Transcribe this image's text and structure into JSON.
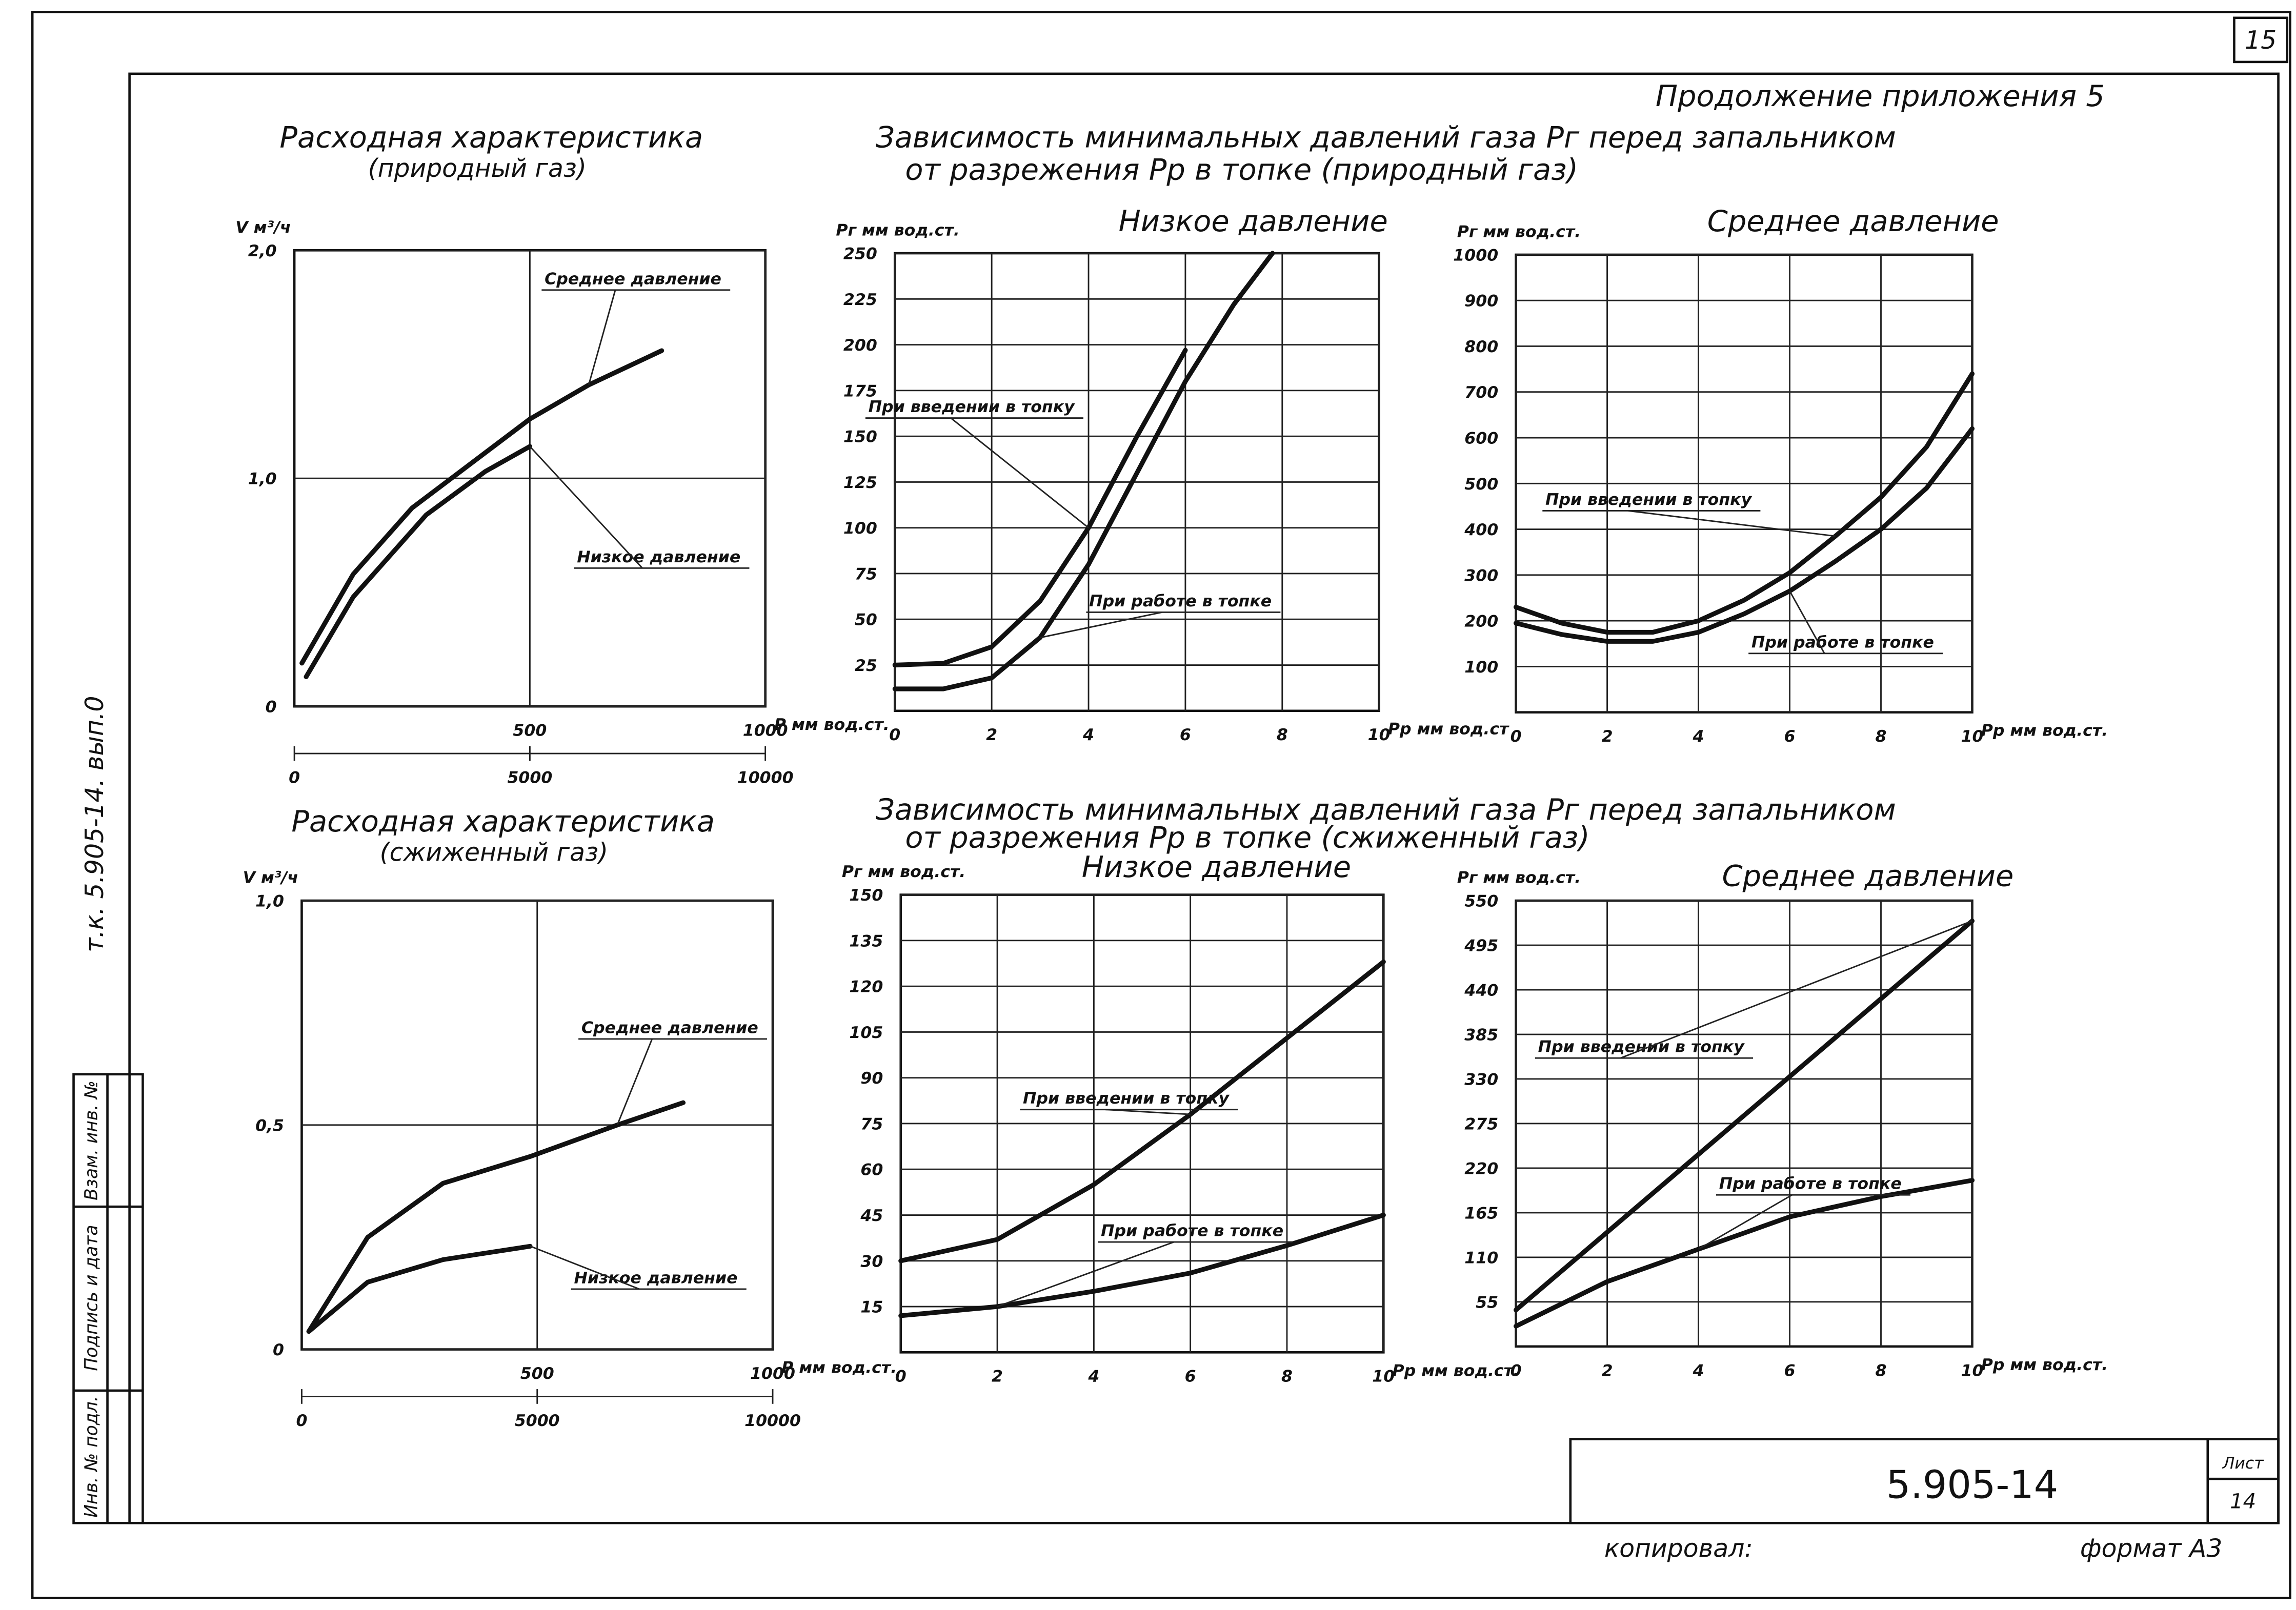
{
  "page": {
    "sheet_number": "15",
    "continuation": "Продолжение приложения 5",
    "side_code": "т.к. 5.905-14. вып.0",
    "stamp": [
      "Инв. № подл.",
      "Подпись и дата",
      "Взам. инв. №"
    ],
    "groups": [
      {
        "title": "Зависимость минимальных давлений газа Pг перед запальником",
        "subtitle": "от разрежения Pp в топке (природный газ)"
      },
      {
        "title": "Зависимость минимальных давлений газа Pг перед запальником",
        "subtitle": "от разрежения Pp в топке (сжиженный газ)"
      }
    ],
    "title_block": {
      "code": "5.905-14",
      "sheet_label": "Лист",
      "sheet": "14"
    },
    "copied_by": "копировал:",
    "format": "формат А3"
  },
  "chart_data": [
    {
      "type": "line",
      "title": "Расходная характеристика",
      "subtitle": "(природный газ)",
      "ylabel": "V м³/ч",
      "xlabel": "P мм вод.ст.",
      "grid": true,
      "xlim": [
        0,
        1000
      ],
      "xticks": [
        500,
        1000
      ],
      "x2lim": [
        0,
        10000
      ],
      "x2ticks": [
        0,
        5000,
        10000
      ],
      "ylim": [
        0,
        2
      ],
      "yticks": [
        0,
        {
          "value": 1,
          "label": "1,0"
        },
        {
          "value": 2,
          "label": "2,0"
        }
      ],
      "series": [
        {
          "name": "Среднее давление",
          "color": "#111111",
          "x": [
            16,
            125,
            250,
            500,
            625,
            780
          ],
          "values": [
            0.19,
            0.58,
            0.87,
            1.26,
            1.41,
            1.56
          ]
        },
        {
          "name": "Низкое давление",
          "color": "#111111",
          "x": [
            25,
            125,
            280,
            405,
            500
          ],
          "values": [
            0.13,
            0.48,
            0.84,
            1.03,
            1.14
          ]
        }
      ]
    },
    {
      "type": "line",
      "title": "Низкое давление",
      "ylabel": "Pг мм вод.ст.",
      "xlabel": "Pp мм вод.ст",
      "grid": true,
      "xlim": [
        0,
        10
      ],
      "xticks": [
        0,
        2,
        4,
        6,
        8,
        10
      ],
      "ylim": [
        0,
        250
      ],
      "yticks": [
        25,
        50,
        75,
        100,
        125,
        150,
        175,
        200,
        225,
        250
      ],
      "series": [
        {
          "name": "При введении в топку",
          "color": "#111111",
          "x": [
            0,
            1,
            2,
            3,
            4,
            5,
            6
          ],
          "values": [
            25,
            26,
            35,
            60,
            100,
            150,
            197
          ]
        },
        {
          "name": "При работе в топке",
          "color": "#111111",
          "x": [
            0,
            1,
            2,
            3,
            4,
            5,
            6,
            7,
            7.8
          ],
          "values": [
            12,
            12,
            18,
            40,
            80,
            130,
            180,
            222,
            250
          ]
        }
      ]
    },
    {
      "type": "line",
      "title": "Среднее давление",
      "ylabel": "Pг мм вод.ст.",
      "xlabel": "Pp мм вод.ст.",
      "grid": true,
      "xlim": [
        0,
        10
      ],
      "xticks": [
        0,
        2,
        4,
        6,
        8,
        10
      ],
      "ylim": [
        0,
        1000
      ],
      "yticks": [
        100,
        200,
        300,
        400,
        500,
        600,
        700,
        800,
        900,
        1000
      ],
      "series": [
        {
          "name": "При введении в топку",
          "color": "#111111",
          "x": [
            0,
            1,
            2,
            3,
            4,
            5,
            6,
            7,
            8,
            9,
            10
          ],
          "values": [
            230,
            195,
            175,
            175,
            200,
            245,
            305,
            385,
            470,
            580,
            740
          ]
        },
        {
          "name": "При работе в топке",
          "color": "#111111",
          "x": [
            0,
            1,
            2,
            3,
            4,
            5,
            6,
            7,
            8,
            9,
            10
          ],
          "values": [
            195,
            170,
            155,
            155,
            175,
            215,
            265,
            330,
            400,
            490,
            620
          ]
        }
      ]
    },
    {
      "type": "line",
      "title": "Расходная характеристика",
      "subtitle": "(сжиженный газ)",
      "ylabel": "V м³/ч",
      "xlabel": "P мм вод.ст.",
      "grid": true,
      "xlim": [
        0,
        1000
      ],
      "xticks": [
        500,
        1000
      ],
      "x2lim": [
        0,
        10000
      ],
      "x2ticks": [
        0,
        5000,
        10000
      ],
      "ylim": [
        0,
        1
      ],
      "yticks": [
        0,
        {
          "value": 0.5,
          "label": "0,5"
        },
        {
          "value": 1,
          "label": "1,0"
        }
      ],
      "series": [
        {
          "name": "Среднее давление",
          "color": "#111111",
          "x": [
            15,
            140,
            300,
            485,
            670,
            810
          ],
          "values": [
            0.04,
            0.25,
            0.37,
            0.43,
            0.5,
            0.55
          ]
        },
        {
          "name": "Низкое давление",
          "color": "#111111",
          "x": [
            15,
            140,
            300,
            485
          ],
          "values": [
            0.04,
            0.15,
            0.2,
            0.23
          ]
        }
      ]
    },
    {
      "type": "line",
      "title": "Низкое давление",
      "ylabel": "Pг мм вод.ст.",
      "xlabel": "Pp мм вод.ст.",
      "grid": true,
      "xlim": [
        0,
        10
      ],
      "xticks": [
        0,
        2,
        4,
        6,
        8,
        10
      ],
      "ylim": [
        0,
        150
      ],
      "yticks": [
        15,
        30,
        45,
        60,
        75,
        90,
        105,
        120,
        135,
        150
      ],
      "series": [
        {
          "name": "При введении в топку",
          "color": "#111111",
          "x": [
            0,
            2,
            4,
            6,
            8,
            10
          ],
          "values": [
            30,
            37,
            55,
            78,
            103,
            128
          ]
        },
        {
          "name": "При работе в топке",
          "color": "#111111",
          "x": [
            0,
            2,
            4,
            6,
            8,
            10
          ],
          "values": [
            12,
            15,
            20,
            26,
            35,
            45
          ]
        }
      ]
    },
    {
      "type": "line",
      "title": "Среднее давление",
      "ylabel": "Pг мм вод.ст.",
      "xlabel": "Pp мм вод.ст.",
      "grid": true,
      "xlim": [
        0,
        10
      ],
      "xticks": [
        0,
        2,
        4,
        6,
        8,
        10
      ],
      "ylim": [
        0,
        550
      ],
      "yticks": [
        55,
        110,
        165,
        220,
        275,
        330,
        385,
        440,
        495,
        550
      ],
      "series": [
        {
          "name": "При введении в топку",
          "color": "#111111",
          "x": [
            0,
            10
          ],
          "values": [
            45,
            525
          ]
        },
        {
          "name": "При работе в топке",
          "color": "#111111",
          "x": [
            0,
            2,
            4,
            6,
            8,
            10
          ],
          "values": [
            25,
            80,
            120,
            160,
            185,
            205
          ]
        }
      ]
    }
  ]
}
